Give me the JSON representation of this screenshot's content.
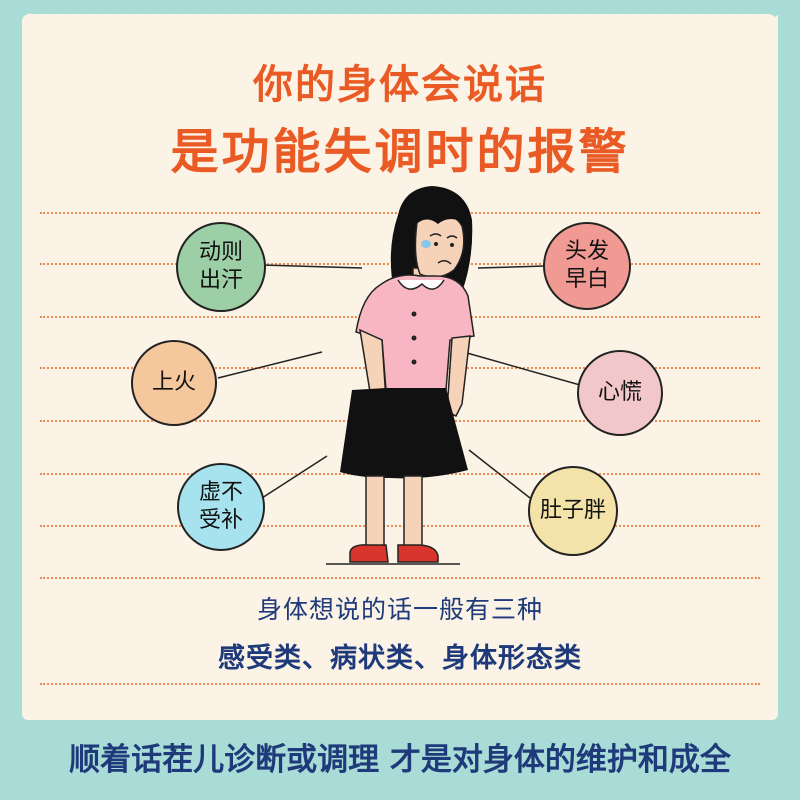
{
  "header": {
    "title_line1": "你的身体会说话",
    "title_line2": "是功能失调时的报警"
  },
  "bubbles": [
    {
      "line1": "动则",
      "line2": "出汗",
      "color": "#9ccfa6"
    },
    {
      "line1": "头发",
      "line2": "早白",
      "color": "#f19a93"
    },
    {
      "line1": "上火",
      "line2": "",
      "color": "#f4c79c"
    },
    {
      "line1": "心慌",
      "line2": "",
      "color": "#f2c7c9"
    },
    {
      "line1": "虚不",
      "line2": "受补",
      "color": "#a7e3ef"
    },
    {
      "line1": "肚子胖",
      "line2": "",
      "color": "#f3e3a9"
    }
  ],
  "body_text": {
    "line1": "身体想说的话一般有三种",
    "line2": "感受类、病状类、身体形态类"
  },
  "footer": {
    "text": "顺着话茬儿诊断或调理 才是对身体的维护和成全"
  },
  "colors": {
    "background_frame": "#a9dcd6",
    "card": "#fbf3e6",
    "title_orange": "#ea5a24",
    "text_navy": "#1e3a7a",
    "dotted_line": "#f08a55"
  }
}
